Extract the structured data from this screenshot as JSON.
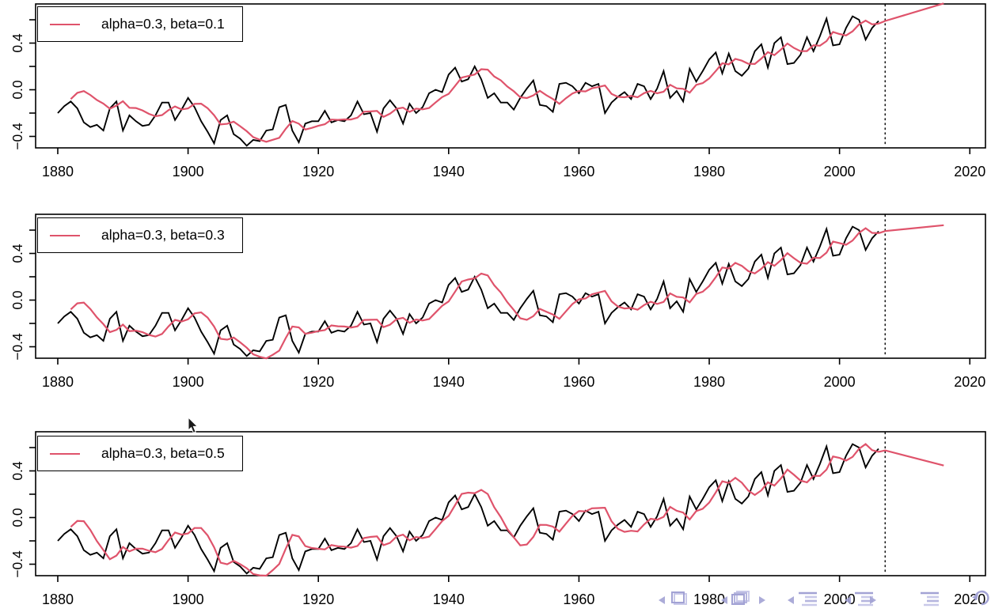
{
  "chart_data": {
    "type": "line",
    "title": "",
    "xlabel": "",
    "ylabel": "",
    "grid": false,
    "x_ticks": [
      1880,
      1900,
      1920,
      1940,
      1960,
      1980,
      2000,
      2020
    ],
    "x_tick_labels": [
      "1880",
      "1900",
      "1920",
      "1940",
      "1960",
      "1980",
      "2000",
      "2020"
    ],
    "y_ticks": [
      -0.4,
      -0.2,
      0.0,
      0.2,
      0.4,
      0.6
    ],
    "y_tick_labels": [
      "-0.4",
      "",
      "0.0",
      "",
      "0.4",
      ""
    ],
    "xlim": [
      1876.6,
      2022.4
    ],
    "ylim": [
      -0.47,
      0.76
    ],
    "observed": {
      "name": "observed-series",
      "color": "#000000",
      "start_year": 1880,
      "end_year": 2006,
      "values": [
        -0.2,
        -0.14,
        -0.1,
        -0.16,
        -0.28,
        -0.32,
        -0.3,
        -0.35,
        -0.16,
        -0.1,
        -0.35,
        -0.22,
        -0.27,
        -0.31,
        -0.3,
        -0.22,
        -0.11,
        -0.11,
        -0.26,
        -0.17,
        -0.07,
        -0.15,
        -0.27,
        -0.36,
        -0.46,
        -0.26,
        -0.22,
        -0.38,
        -0.42,
        -0.48,
        -0.43,
        -0.44,
        -0.35,
        -0.34,
        -0.15,
        -0.13,
        -0.35,
        -0.45,
        -0.29,
        -0.27,
        -0.27,
        -0.18,
        -0.28,
        -0.26,
        -0.27,
        -0.22,
        -0.1,
        -0.21,
        -0.2,
        -0.36,
        -0.16,
        -0.09,
        -0.16,
        -0.29,
        -0.12,
        -0.2,
        -0.15,
        -0.03,
        0.0,
        -0.02,
        0.13,
        0.19,
        0.07,
        0.09,
        0.2,
        0.09,
        -0.07,
        -0.03,
        -0.11,
        -0.11,
        -0.17,
        -0.07,
        0.01,
        0.08,
        -0.13,
        -0.14,
        -0.19,
        0.05,
        0.06,
        0.03,
        -0.03,
        0.06,
        0.03,
        0.05,
        -0.2,
        -0.11,
        -0.06,
        -0.02,
        -0.08,
        0.05,
        0.03,
        -0.08,
        0.01,
        0.16,
        -0.07,
        -0.01,
        -0.1,
        0.18,
        0.07,
        0.16,
        0.26,
        0.32,
        0.14,
        0.31,
        0.16,
        0.12,
        0.18,
        0.33,
        0.39,
        0.19,
        0.4,
        0.45,
        0.22,
        0.23,
        0.3,
        0.45,
        0.33,
        0.46,
        0.61,
        0.38,
        0.39,
        0.53,
        0.63,
        0.6,
        0.43,
        0.53,
        0.59
      ]
    },
    "vline_year": 2007,
    "vline_style": "dotted",
    "forecast_start_year": 2007,
    "forecast_end_year": 2016,
    "fit_color": "#DF536B",
    "panels": [
      {
        "legend_label": "alpha=0.3, beta=0.1",
        "alpha": 0.3,
        "beta": 0.1,
        "forecast_start_value": 0.57,
        "forecast_end_value": 0.72
      },
      {
        "legend_label": "alpha=0.3, beta=0.3",
        "alpha": 0.3,
        "beta": 0.3,
        "forecast_start_value": 0.57,
        "forecast_end_value": 0.62
      },
      {
        "legend_label": "alpha=0.3, beta=0.5",
        "alpha": 0.3,
        "beta": 0.5,
        "forecast_start_value": 0.6,
        "forecast_end_value": 0.47
      }
    ],
    "legend_position": "topleft"
  },
  "nav": {
    "color": "#a2a2d4",
    "color_light": "#c9c9e9"
  }
}
